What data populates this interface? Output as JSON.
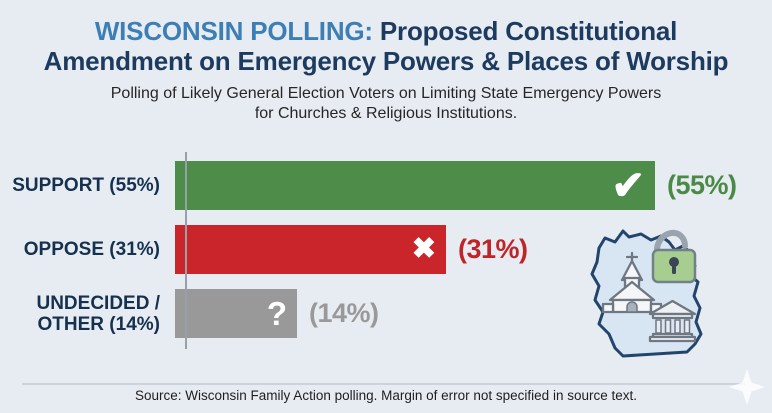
{
  "header": {
    "title_highlight": "WISCONSIN POLLING:",
    "title_line1_rest": " Proposed Constitutional",
    "title_line2": "Amendment on Emergency Powers & Places of Worship",
    "subtitle_line1": "Polling of Likely General Election Voters on Limiting State Emergency Powers",
    "subtitle_line2": "for Churches & Religious Institutions.",
    "highlight_color": "#3d7fb5",
    "title_color": "#1d3a5f"
  },
  "chart_data": {
    "type": "bar",
    "orientation": "horizontal",
    "title": "Wisconsin Polling: Proposed Constitutional Amendment on Emergency Powers & Places of Worship",
    "subtitle": "Polling of Likely General Election Voters on Limiting State Emergency Powers for Churches & Religious Institutions.",
    "categories": [
      "SUPPORT (55%)",
      "OPPOSE (31%)",
      "UNDECIDED /\nOTHER (14%)"
    ],
    "values": [
      55,
      31,
      14
    ],
    "unit": "percent",
    "value_labels": [
      "(55%)",
      "(31%)",
      "(14%)"
    ],
    "bar_colors": [
      "#4d8c49",
      "#c9252b",
      "#999999"
    ],
    "value_label_colors": [
      "#4a8a46",
      "#bf2429",
      "#999999"
    ],
    "bar_icons": [
      "check",
      "x",
      "question"
    ],
    "icon_names": [
      "check-icon",
      "x-icon",
      "question-icon"
    ],
    "icon_glyphs": [
      "✔",
      "✖",
      "?"
    ],
    "axis_max_display": 55,
    "grid": false,
    "legend": false
  },
  "illustration": {
    "elements": [
      "wisconsin-map",
      "church-icon",
      "open-padlock-icon",
      "government-building-icon"
    ],
    "map_fill": "#d8e6f4",
    "map_stroke": "#24456b",
    "padlock_fill": "#a7cd90"
  },
  "footer": {
    "source": "Source: Wisconsin Family Action polling. Margin of error not specified in source text."
  }
}
